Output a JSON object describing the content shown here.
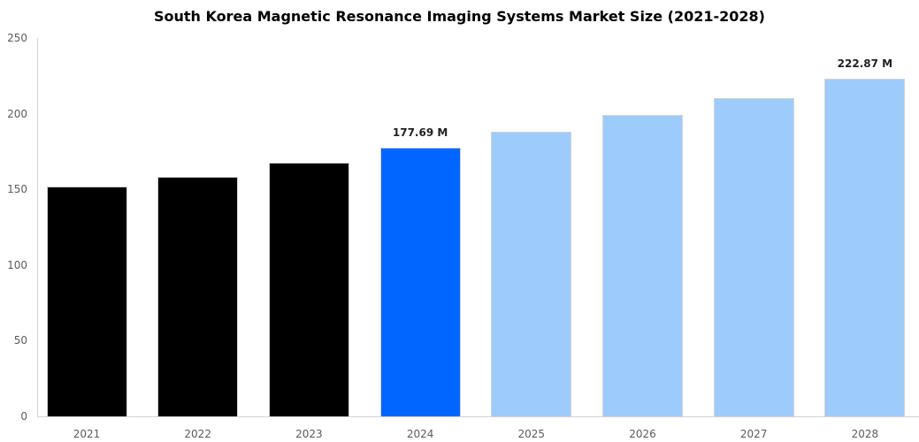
{
  "chart_data": {
    "type": "bar",
    "title": "South Korea Magnetic Resonance Imaging Systems Market Size (2021-2028)",
    "categories": [
      "2021",
      "2022",
      "2023",
      "2024",
      "2025",
      "2026",
      "2027",
      "2028"
    ],
    "values": [
      152,
      158.5,
      167.5,
      177.69,
      188,
      199,
      210.5,
      222.87
    ],
    "data_labels": [
      null,
      null,
      null,
      "177.69 M",
      null,
      null,
      null,
      "222.87 M"
    ],
    "bar_colors": [
      "#000000",
      "#000000",
      "#000000",
      "#0066ff",
      "#9dccfb",
      "#9dccfb",
      "#9dccfb",
      "#9dccfb"
    ],
    "xlabel": "",
    "ylabel": "",
    "ylim": [
      0,
      250
    ],
    "yticks": [
      0,
      50,
      100,
      150,
      200,
      250
    ],
    "grid": false,
    "legend": "none",
    "colors": {
      "historical_bar": "#000000",
      "highlight_bar": "#0066ff",
      "forecast_bar": "#9dccfb",
      "bar_edge": "#d3d3d3",
      "axis_line": "#d3d3d3",
      "tick_text": "#5b5b5b",
      "title_text": "#000000",
      "value_label_text": "#1f1f1f"
    }
  }
}
